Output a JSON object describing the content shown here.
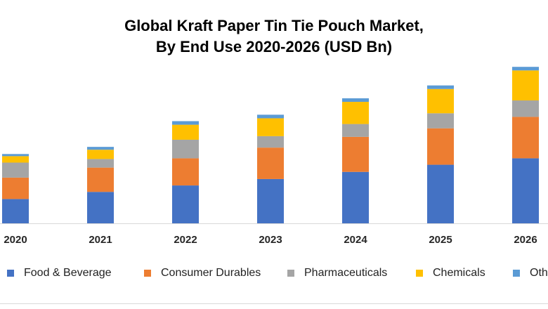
{
  "title": {
    "line1": "Global Kraft Paper Tin Tie Pouch Market,",
    "line2": "By End Use 2020-2026 (USD Bn)"
  },
  "chart_data": {
    "type": "bar",
    "stacked": true,
    "title": "Global Kraft Paper Tin Tie Pouch Market, By End Use 2020-2026 (USD Bn)",
    "xlabel": "",
    "ylabel": "",
    "categories": [
      "2020",
      "2021",
      "2022",
      "2023",
      "2024",
      "2025",
      "2026"
    ],
    "series": [
      {
        "name": "Food & Beverage",
        "color": "#4472C4",
        "values": [
          0.34,
          0.44,
          0.53,
          0.62,
          0.72,
          0.82,
          0.91
        ]
      },
      {
        "name": "Consumer Durables",
        "color": "#ED7D31",
        "values": [
          0.3,
          0.34,
          0.38,
          0.44,
          0.49,
          0.51,
          0.58
        ]
      },
      {
        "name": "Pharmaceuticals",
        "color": "#A5A5A5",
        "values": [
          0.21,
          0.12,
          0.26,
          0.16,
          0.18,
          0.21,
          0.23
        ]
      },
      {
        "name": "Chemicals",
        "color": "#FFC000",
        "values": [
          0.09,
          0.13,
          0.21,
          0.25,
          0.31,
          0.34,
          0.42
        ]
      },
      {
        "name": "Others",
        "color": "#5B9BD5",
        "values": [
          0.03,
          0.04,
          0.05,
          0.05,
          0.05,
          0.05,
          0.05
        ]
      }
    ],
    "ylim": [
      0,
      2.3
    ],
    "grid": false,
    "legend_position": "bottom"
  },
  "legend": {
    "items": [
      "Food & Beverage",
      "Consumer Durables",
      "Pharmaceuticals",
      "Chemicals",
      "Others"
    ]
  }
}
